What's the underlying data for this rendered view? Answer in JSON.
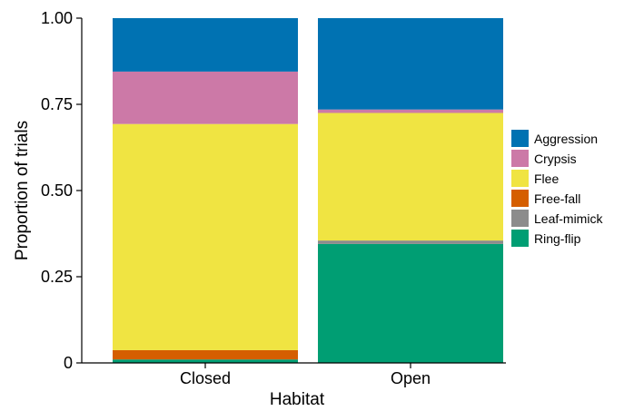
{
  "chart_data": {
    "type": "bar",
    "stacked": true,
    "title": "",
    "xlabel": "Habitat",
    "ylabel": "Proportion of trials",
    "categories": [
      "Closed",
      "Open"
    ],
    "ylim": [
      0,
      1
    ],
    "yticks": [
      0,
      0.25,
      0.5,
      0.75,
      1.0
    ],
    "ytick_labels": [
      "0",
      "0.25",
      "0.50",
      "0.75",
      "1.00"
    ],
    "series": [
      {
        "name": "Ring-flip",
        "color": "#009e73",
        "values": [
          0.01,
          0.345
        ]
      },
      {
        "name": "Leaf-mimick",
        "color": "#8c8c8c",
        "values": [
          0.0,
          0.01
        ]
      },
      {
        "name": "Free-fall",
        "color": "#d55e00",
        "values": [
          0.027,
          0.0
        ]
      },
      {
        "name": "Flee",
        "color": "#f0e442",
        "values": [
          0.656,
          0.37
        ]
      },
      {
        "name": "Crypsis",
        "color": "#cc79a7",
        "values": [
          0.152,
          0.01
        ]
      },
      {
        "name": "Aggression",
        "color": "#0072b2",
        "values": [
          0.155,
          0.265
        ]
      }
    ],
    "legend": {
      "position": "right",
      "order": [
        "Aggression",
        "Crypsis",
        "Flee",
        "Free-fall",
        "Leaf-mimick",
        "Ring-flip"
      ]
    },
    "grid": false
  }
}
